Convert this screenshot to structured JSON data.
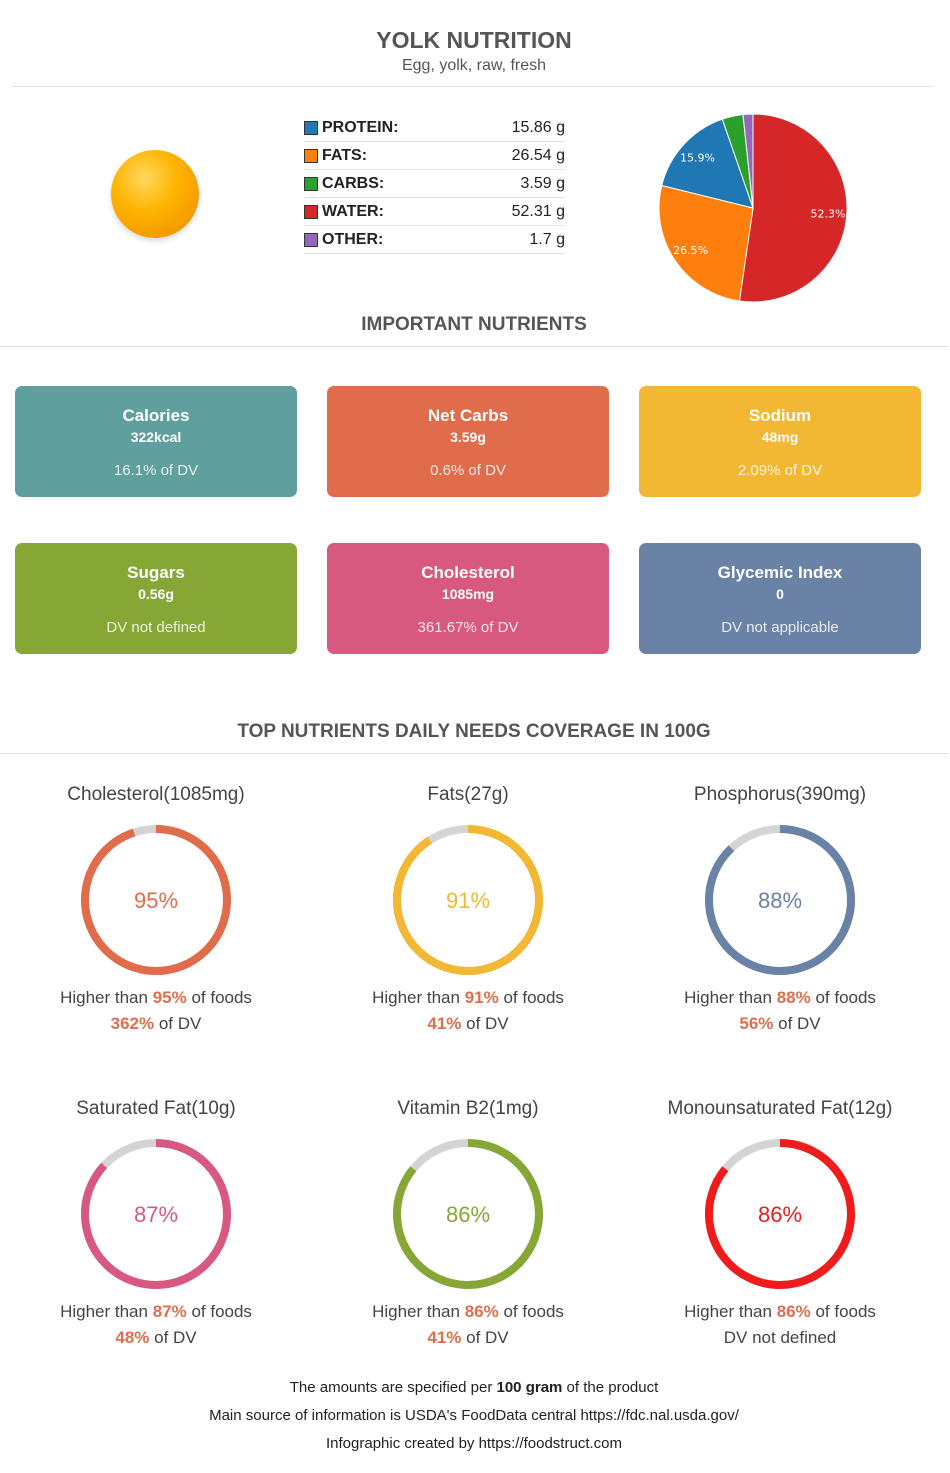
{
  "header": {
    "title": "YOLK NUTRITION",
    "subtitle": "Egg, yolk, raw, fresh"
  },
  "macros": [
    {
      "label": "PROTEIN:",
      "value": "15.86 g",
      "color": "#1f77b4"
    },
    {
      "label": "FATS:",
      "value": "26.54 g",
      "color": "#ff7f0e"
    },
    {
      "label": "CARBS:",
      "value": "3.59 g",
      "color": "#2ca02c"
    },
    {
      "label": "WATER:",
      "value": "52.31 g",
      "color": "#d62728"
    },
    {
      "label": "OTHER:",
      "value": "1.7 g",
      "color": "#9467bd"
    }
  ],
  "chart_data": {
    "type": "pie",
    "slices": [
      {
        "name": "WATER",
        "value": 52.31,
        "label": "52.3%",
        "color": "#d62728"
      },
      {
        "name": "FATS",
        "value": 26.54,
        "label": "26.5%",
        "color": "#ff7f0e"
      },
      {
        "name": "PROTEIN",
        "value": 15.86,
        "label": "15.9%",
        "color": "#1f77b4"
      },
      {
        "name": "CARBS",
        "value": 3.59,
        "label": "",
        "color": "#2ca02c"
      },
      {
        "name": "OTHER",
        "value": 1.7,
        "label": "",
        "color": "#9467bd"
      }
    ]
  },
  "important": {
    "title": "IMPORTANT NUTRIENTS",
    "cards": [
      {
        "name": "Calories",
        "value": "322kcal",
        "dv": "16.1% of DV",
        "color": "#5fa09e"
      },
      {
        "name": "Net Carbs",
        "value": "3.59g",
        "dv": "0.6% of DV",
        "color": "#e06c4b"
      },
      {
        "name": "Sodium",
        "value": "48mg",
        "dv": "2.09% of DV",
        "color": "#f2b733"
      },
      {
        "name": "Sugars",
        "value": "0.56g",
        "dv": "DV not defined",
        "color": "#86a735"
      },
      {
        "name": "Cholesterol",
        "value": "1085mg",
        "dv": "361.67% of DV",
        "color": "#d8597f"
      },
      {
        "name": "Glycemic Index",
        "value": "0",
        "dv": "DV not applicable",
        "color": "#6a82a6"
      }
    ]
  },
  "coverage": {
    "title": "TOP NUTRIENTS DAILY NEEDS COVERAGE IN 100G",
    "higher_prefix": "Higher than ",
    "higher_suffix": " of foods",
    "dv_suffix": " of DV",
    "items": [
      {
        "name": "Cholesterol(1085mg)",
        "percent": 95,
        "percent_label": "95%",
        "dv": "362%",
        "dv_text": "",
        "color": "#e06c4b"
      },
      {
        "name": "Fats(27g)",
        "percent": 91,
        "percent_label": "91%",
        "dv": "41%",
        "dv_text": "",
        "color": "#f2b733"
      },
      {
        "name": "Phosphorus(390mg)",
        "percent": 88,
        "percent_label": "88%",
        "dv": "56%",
        "dv_text": "",
        "color": "#6a82a6"
      },
      {
        "name": "Saturated Fat(10g)",
        "percent": 87,
        "percent_label": "87%",
        "dv": "48%",
        "dv_text": "",
        "color": "#d8597f"
      },
      {
        "name": "Vitamin B2(1mg)",
        "percent": 86,
        "percent_label": "86%",
        "dv": "41%",
        "dv_text": "",
        "color": "#86a735"
      },
      {
        "name": "Monounsaturated Fat(12g)",
        "percent": 86,
        "percent_label": "86%",
        "dv": "",
        "dv_text": "DV not defined",
        "color": "#ee1c1c"
      }
    ]
  },
  "footer": {
    "line1_prefix": "The amounts are specified per ",
    "line1_bold": "100 gram",
    "line1_suffix": " of the product",
    "line2": "Main source of information is USDA's FoodData central https://fdc.nal.usda.gov/",
    "line3": "Infographic created by https://foodstruct.com"
  }
}
